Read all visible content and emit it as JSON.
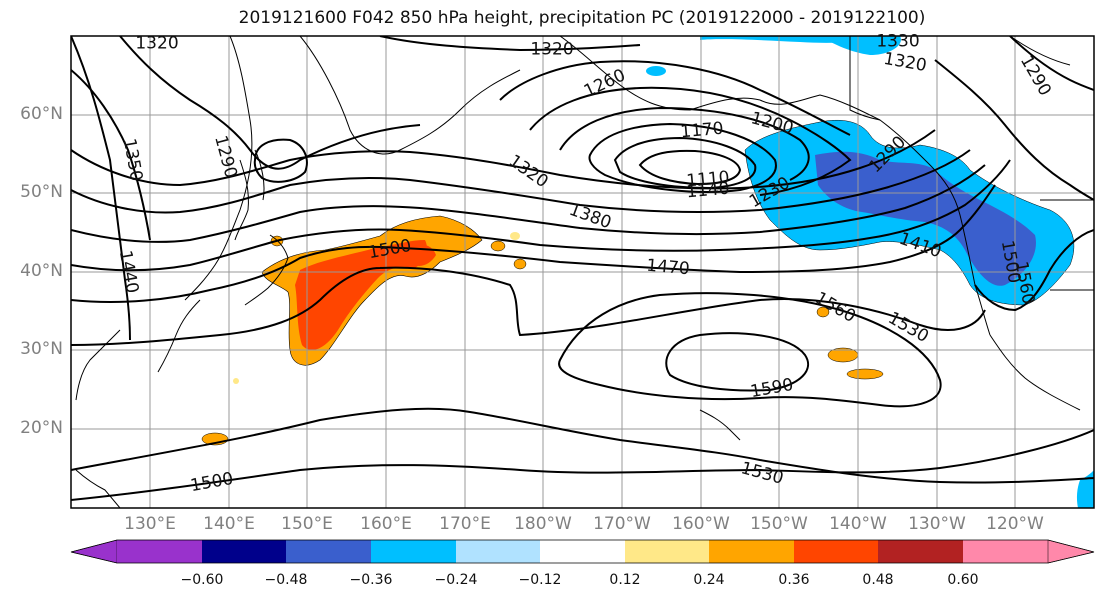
{
  "title": "2019121600 F042 850 hPa height, precipitation PC (2019122000 - 2019122100)",
  "lat_labels": [
    "60°N",
    "50°N",
    "40°N",
    "30°N",
    "20°N"
  ],
  "lon_labels": [
    "130°E",
    "140°E",
    "150°E",
    "160°E",
    "170°E",
    "180°W",
    "170°W",
    "160°W",
    "150°W",
    "140°W",
    "130°W",
    "120°W"
  ],
  "contour_labels": [
    "1320",
    "1320",
    "1330",
    "1320",
    "1290",
    "1350",
    "1290",
    "1260",
    "1200",
    "1170",
    "1110",
    "1140",
    "1320",
    "1230",
    "1290",
    "1380",
    "1500",
    "1470",
    "1410",
    "1560",
    "1440",
    "1560",
    "1530",
    "1590",
    "1530",
    "1500",
    "1500"
  ],
  "colorbar": {
    "ticks": [
      "−0.60",
      "−0.48",
      "−0.36",
      "−0.24",
      "−0.12",
      "0.12",
      "0.24",
      "0.36",
      "0.48",
      "0.60"
    ],
    "colors": [
      "#9932cc",
      "#00008b",
      "#3a5fcd",
      "#00bfff",
      "#b0e2ff",
      "#ffffff",
      "#ffe888",
      "#ffa500",
      "#ff4500",
      "#b22222",
      "#ff88aa"
    ]
  }
}
